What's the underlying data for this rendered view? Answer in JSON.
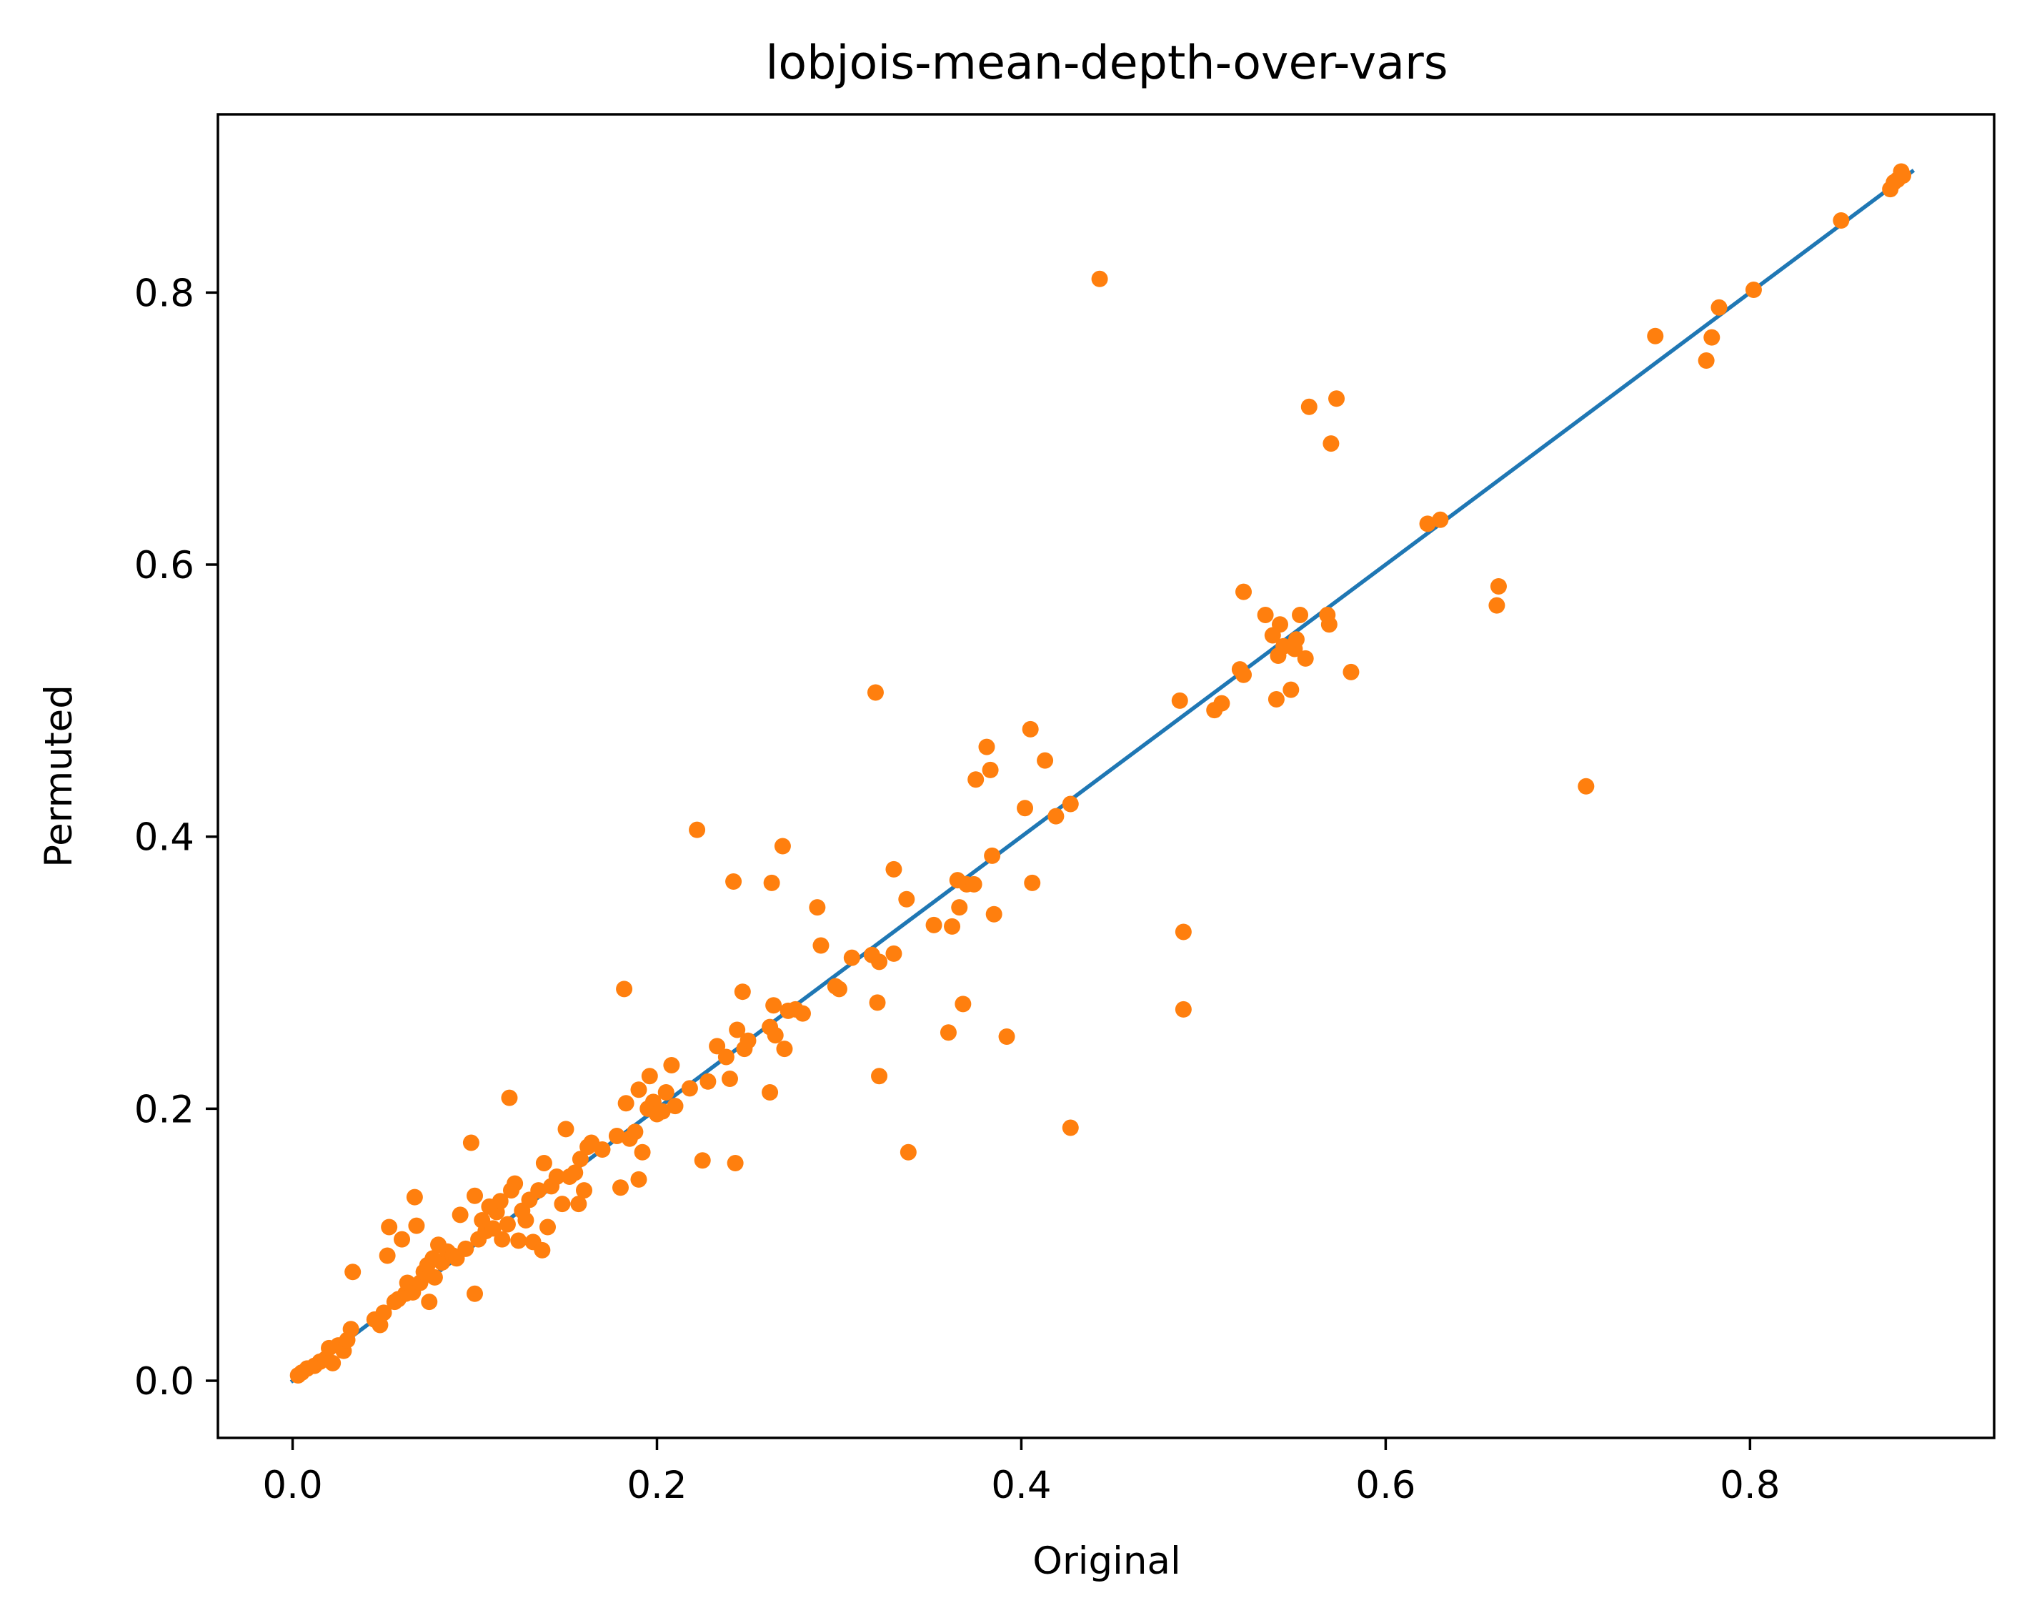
{
  "chart_data": {
    "type": "scatter",
    "title": "lobjois-mean-depth-over-vars",
    "xlabel": "Original",
    "ylabel": "Permuted",
    "xlim": [
      -0.041,
      0.934
    ],
    "ylim": [
      -0.042,
      0.931
    ],
    "xticks": [
      0.0,
      0.2,
      0.4,
      0.6,
      0.8
    ],
    "xtick_labels": [
      "0.0",
      "0.2",
      "0.4",
      "0.6",
      "0.8"
    ],
    "yticks": [
      0.0,
      0.2,
      0.4,
      0.6,
      0.8
    ],
    "ytick_labels": [
      "0.0",
      "0.2",
      "0.4",
      "0.6",
      "0.8"
    ],
    "grid": false,
    "legend": "none",
    "colors": {
      "line": "#1f77b4",
      "points": "#ff7f0e"
    },
    "series": [
      {
        "type": "line",
        "x": [
          0.0,
          0.889
        ],
        "y": [
          0.0,
          0.889
        ]
      },
      {
        "type": "scatter",
        "points": [
          [
            0.003,
            0.004
          ],
          [
            0.005,
            0.006
          ],
          [
            0.008,
            0.009
          ],
          [
            0.012,
            0.011
          ],
          [
            0.015,
            0.014
          ],
          [
            0.018,
            0.016
          ],
          [
            0.02,
            0.024
          ],
          [
            0.022,
            0.013
          ],
          [
            0.025,
            0.026
          ],
          [
            0.028,
            0.022
          ],
          [
            0.03,
            0.03
          ],
          [
            0.032,
            0.038
          ],
          [
            0.033,
            0.08
          ],
          [
            0.045,
            0.045
          ],
          [
            0.048,
            0.041
          ],
          [
            0.05,
            0.05
          ],
          [
            0.052,
            0.092
          ],
          [
            0.053,
            0.113
          ],
          [
            0.056,
            0.058
          ],
          [
            0.058,
            0.06
          ],
          [
            0.06,
            0.104
          ],
          [
            0.062,
            0.064
          ],
          [
            0.063,
            0.072
          ],
          [
            0.066,
            0.065
          ],
          [
            0.067,
            0.135
          ],
          [
            0.068,
            0.114
          ],
          [
            0.07,
            0.072
          ],
          [
            0.072,
            0.08
          ],
          [
            0.074,
            0.085
          ],
          [
            0.075,
            0.058
          ],
          [
            0.077,
            0.09
          ],
          [
            0.078,
            0.076
          ],
          [
            0.08,
            0.1
          ],
          [
            0.082,
            0.087
          ],
          [
            0.085,
            0.095
          ],
          [
            0.088,
            0.092
          ],
          [
            0.09,
            0.09
          ],
          [
            0.092,
            0.122
          ],
          [
            0.095,
            0.097
          ],
          [
            0.098,
            0.175
          ],
          [
            0.1,
            0.064
          ],
          [
            0.1,
            0.136
          ],
          [
            0.102,
            0.104
          ],
          [
            0.104,
            0.118
          ],
          [
            0.106,
            0.11
          ],
          [
            0.108,
            0.128
          ],
          [
            0.11,
            0.112
          ],
          [
            0.112,
            0.124
          ],
          [
            0.114,
            0.132
          ],
          [
            0.115,
            0.104
          ],
          [
            0.118,
            0.115
          ],
          [
            0.119,
            0.208
          ],
          [
            0.12,
            0.14
          ],
          [
            0.122,
            0.145
          ],
          [
            0.124,
            0.103
          ],
          [
            0.126,
            0.125
          ],
          [
            0.128,
            0.118
          ],
          [
            0.13,
            0.133
          ],
          [
            0.132,
            0.102
          ],
          [
            0.135,
            0.14
          ],
          [
            0.137,
            0.096
          ],
          [
            0.138,
            0.16
          ],
          [
            0.14,
            0.113
          ],
          [
            0.142,
            0.143
          ],
          [
            0.145,
            0.15
          ],
          [
            0.148,
            0.13
          ],
          [
            0.15,
            0.185
          ],
          [
            0.152,
            0.15
          ],
          [
            0.155,
            0.153
          ],
          [
            0.157,
            0.13
          ],
          [
            0.158,
            0.163
          ],
          [
            0.16,
            0.14
          ],
          [
            0.162,
            0.172
          ],
          [
            0.164,
            0.175
          ],
          [
            0.17,
            0.17
          ],
          [
            0.178,
            0.18
          ],
          [
            0.18,
            0.142
          ],
          [
            0.182,
            0.288
          ],
          [
            0.183,
            0.204
          ],
          [
            0.185,
            0.178
          ],
          [
            0.188,
            0.183
          ],
          [
            0.19,
            0.148
          ],
          [
            0.19,
            0.214
          ],
          [
            0.192,
            0.168
          ],
          [
            0.195,
            0.2
          ],
          [
            0.196,
            0.224
          ],
          [
            0.198,
            0.205
          ],
          [
            0.2,
            0.196
          ],
          [
            0.203,
            0.198
          ],
          [
            0.205,
            0.212
          ],
          [
            0.208,
            0.232
          ],
          [
            0.21,
            0.202
          ],
          [
            0.218,
            0.215
          ],
          [
            0.222,
            0.405
          ],
          [
            0.225,
            0.162
          ],
          [
            0.228,
            0.22
          ],
          [
            0.233,
            0.246
          ],
          [
            0.238,
            0.238
          ],
          [
            0.24,
            0.222
          ],
          [
            0.242,
            0.367
          ],
          [
            0.243,
            0.16
          ],
          [
            0.244,
            0.258
          ],
          [
            0.247,
            0.286
          ],
          [
            0.248,
            0.244
          ],
          [
            0.25,
            0.25
          ],
          [
            0.262,
            0.212
          ],
          [
            0.262,
            0.26
          ],
          [
            0.263,
            0.366
          ],
          [
            0.264,
            0.276
          ],
          [
            0.265,
            0.254
          ],
          [
            0.269,
            0.393
          ],
          [
            0.27,
            0.244
          ],
          [
            0.272,
            0.272
          ],
          [
            0.276,
            0.273
          ],
          [
            0.28,
            0.27
          ],
          [
            0.288,
            0.348
          ],
          [
            0.29,
            0.32
          ],
          [
            0.298,
            0.29
          ],
          [
            0.3,
            0.288
          ],
          [
            0.307,
            0.311
          ],
          [
            0.318,
            0.313
          ],
          [
            0.32,
            0.506
          ],
          [
            0.321,
            0.278
          ],
          [
            0.322,
            0.224
          ],
          [
            0.322,
            0.308
          ],
          [
            0.33,
            0.314
          ],
          [
            0.33,
            0.376
          ],
          [
            0.337,
            0.354
          ],
          [
            0.338,
            0.168
          ],
          [
            0.352,
            0.335
          ],
          [
            0.36,
            0.256
          ],
          [
            0.362,
            0.334
          ],
          [
            0.365,
            0.368
          ],
          [
            0.366,
            0.348
          ],
          [
            0.368,
            0.277
          ],
          [
            0.37,
            0.365
          ],
          [
            0.374,
            0.365
          ],
          [
            0.375,
            0.442
          ],
          [
            0.381,
            0.466
          ],
          [
            0.383,
            0.449
          ],
          [
            0.384,
            0.386
          ],
          [
            0.385,
            0.343
          ],
          [
            0.392,
            0.253
          ],
          [
            0.402,
            0.421
          ],
          [
            0.405,
            0.479
          ],
          [
            0.406,
            0.366
          ],
          [
            0.413,
            0.456
          ],
          [
            0.419,
            0.415
          ],
          [
            0.427,
            0.186
          ],
          [
            0.427,
            0.424
          ],
          [
            0.443,
            0.81
          ],
          [
            0.487,
            0.5
          ],
          [
            0.489,
            0.33
          ],
          [
            0.489,
            0.273
          ],
          [
            0.506,
            0.493
          ],
          [
            0.51,
            0.498
          ],
          [
            0.52,
            0.523
          ],
          [
            0.522,
            0.58
          ],
          [
            0.522,
            0.519
          ],
          [
            0.534,
            0.563
          ],
          [
            0.538,
            0.548
          ],
          [
            0.54,
            0.501
          ],
          [
            0.541,
            0.533
          ],
          [
            0.542,
            0.556
          ],
          [
            0.544,
            0.54
          ],
          [
            0.548,
            0.508
          ],
          [
            0.55,
            0.538
          ],
          [
            0.551,
            0.545
          ],
          [
            0.553,
            0.563
          ],
          [
            0.556,
            0.531
          ],
          [
            0.558,
            0.716
          ],
          [
            0.568,
            0.563
          ],
          [
            0.569,
            0.556
          ],
          [
            0.57,
            0.689
          ],
          [
            0.573,
            0.722
          ],
          [
            0.581,
            0.521
          ],
          [
            0.623,
            0.63
          ],
          [
            0.63,
            0.633
          ],
          [
            0.661,
            0.57
          ],
          [
            0.662,
            0.584
          ],
          [
            0.71,
            0.437
          ],
          [
            0.748,
            0.768
          ],
          [
            0.776,
            0.75
          ],
          [
            0.779,
            0.767
          ],
          [
            0.783,
            0.789
          ],
          [
            0.802,
            0.802
          ],
          [
            0.85,
            0.853
          ],
          [
            0.877,
            0.876
          ],
          [
            0.879,
            0.881
          ],
          [
            0.881,
            0.883
          ],
          [
            0.883,
            0.889
          ],
          [
            0.884,
            0.886
          ]
        ]
      }
    ]
  }
}
